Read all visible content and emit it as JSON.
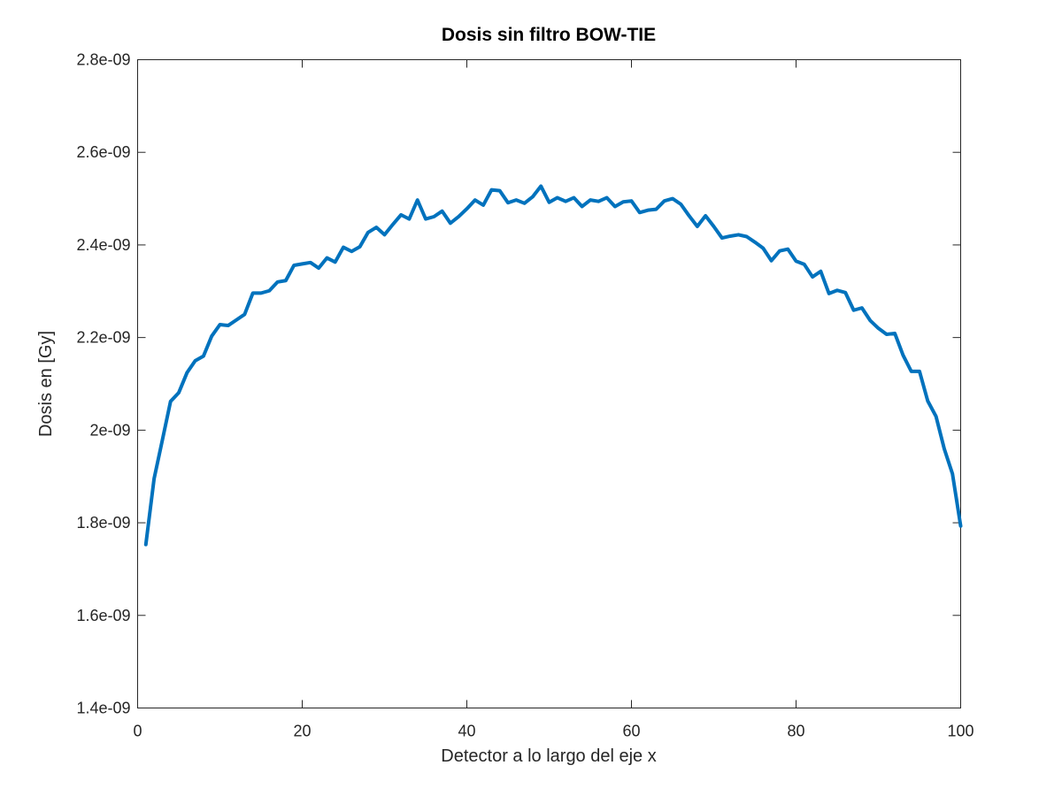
{
  "chart_data": {
    "type": "line",
    "title": "Dosis sin filtro BOW-TIE",
    "xlabel": "Detector a lo largo del eje x",
    "ylabel": "Dosis en [Gy]",
    "xlim": [
      0,
      100
    ],
    "ylim": [
      1.4e-09,
      2.8e-09
    ],
    "xticks": [
      0,
      20,
      40,
      60,
      80,
      100
    ],
    "xtick_labels": [
      "0",
      "20",
      "40",
      "60",
      "80",
      "100"
    ],
    "yticks": [
      1.4e-09,
      1.6e-09,
      1.8e-09,
      2e-09,
      2.2e-09,
      2.4e-09,
      2.6e-09,
      2.8e-09
    ],
    "ytick_labels": [
      "1.4e-09",
      "1.6e-09",
      "1.8e-09",
      "2e-09",
      "2.2e-09",
      "2.4e-09",
      "2.6e-09",
      "2.8e-09"
    ],
    "grid": false,
    "series": [
      {
        "color": "#0072BD",
        "x": [
          1,
          2,
          3,
          4,
          5,
          6,
          7,
          8,
          9,
          10,
          11,
          12,
          13,
          14,
          15,
          16,
          17,
          18,
          19,
          20,
          21,
          22,
          23,
          24,
          25,
          26,
          27,
          28,
          29,
          30,
          31,
          32,
          33,
          34,
          35,
          36,
          37,
          38,
          39,
          40,
          41,
          42,
          43,
          44,
          45,
          46,
          47,
          48,
          49,
          50,
          51,
          52,
          53,
          54,
          55,
          56,
          57,
          58,
          59,
          60,
          61,
          62,
          63,
          64,
          65,
          66,
          67,
          68,
          69,
          70,
          71,
          72,
          73,
          74,
          75,
          76,
          77,
          78,
          79,
          80,
          81,
          82,
          83,
          84,
          85,
          86,
          87,
          88,
          89,
          90,
          91,
          92,
          93,
          94,
          95,
          96,
          97,
          98,
          99,
          100
        ],
        "y": [
          1.753e-09,
          1.895e-09,
          1.978e-09,
          2.062e-09,
          2.081e-09,
          2.124e-09,
          2.15e-09,
          2.16e-09,
          2.203e-09,
          2.228e-09,
          2.226e-09,
          2.238e-09,
          2.25e-09,
          2.296e-09,
          2.296e-09,
          2.301e-09,
          2.32e-09,
          2.323e-09,
          2.356e-09,
          2.359e-09,
          2.362e-09,
          2.35e-09,
          2.372e-09,
          2.363e-09,
          2.395e-09,
          2.386e-09,
          2.396e-09,
          2.427e-09,
          2.438e-09,
          2.422e-09,
          2.444e-09,
          2.465e-09,
          2.456e-09,
          2.497e-09,
          2.456e-09,
          2.461e-09,
          2.473e-09,
          2.447e-09,
          2.461e-09,
          2.478e-09,
          2.497e-09,
          2.486e-09,
          2.519e-09,
          2.517e-09,
          2.491e-09,
          2.497e-09,
          2.49e-09,
          2.504e-09,
          2.527e-09,
          2.492e-09,
          2.502e-09,
          2.494e-09,
          2.502e-09,
          2.483e-09,
          2.497e-09,
          2.494e-09,
          2.502e-09,
          2.483e-09,
          2.493e-09,
          2.495e-09,
          2.47e-09,
          2.475e-09,
          2.477e-09,
          2.495e-09,
          2.5e-09,
          2.488e-09,
          2.463e-09,
          2.44e-09,
          2.463e-09,
          2.44e-09,
          2.415e-09,
          2.419e-09,
          2.422e-09,
          2.418e-09,
          2.406e-09,
          2.393e-09,
          2.366e-09,
          2.387e-09,
          2.391e-09,
          2.365e-09,
          2.358e-09,
          2.331e-09,
          2.343e-09,
          2.295e-09,
          2.302e-09,
          2.297e-09,
          2.259e-09,
          2.264e-09,
          2.237e-09,
          2.22e-09,
          2.207e-09,
          2.209e-09,
          2.162e-09,
          2.127e-09,
          2.127e-09,
          2.063e-09,
          2.03e-09,
          1.96e-09,
          1.906e-09,
          1.793e-09
        ]
      }
    ]
  }
}
